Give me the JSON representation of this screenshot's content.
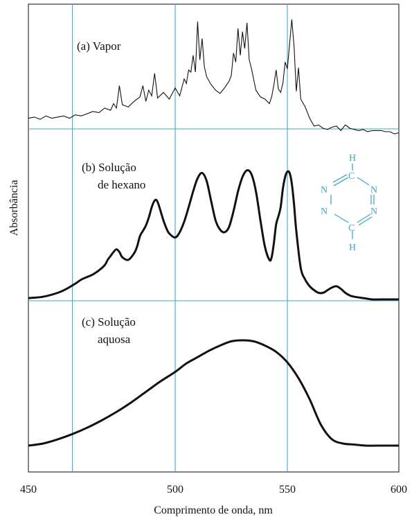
{
  "chart_data": {
    "type": "line",
    "xlabel": "Comprimento de onda, nm",
    "ylabel": "Absorbância",
    "xlim": [
      450,
      600
    ],
    "xticks": [
      "450",
      "500",
      "550",
      "600"
    ],
    "grid_x": [
      465,
      500,
      550
    ],
    "colors": {
      "curve": "#111111",
      "grid": "#39a9dc",
      "frame": "#333333",
      "molecule": "#39a9dc"
    },
    "panels": [
      {
        "id": "vapor",
        "annotation": [
          "(a) Vapor"
        ],
        "ylim": [
          0,
          1
        ],
        "x": [
          450,
          452,
          454,
          456,
          458,
          460,
          462,
          464,
          466,
          468,
          470,
          472,
          474,
          476,
          478,
          479,
          480,
          481,
          482,
          484,
          486,
          488,
          489,
          490,
          491,
          492,
          493,
          494,
          496,
          498,
          500,
          502,
          504,
          505,
          506,
          507,
          508,
          509,
          510,
          511,
          512,
          513,
          514,
          516,
          518,
          520,
          522,
          524,
          525,
          526,
          527,
          528,
          529,
          530,
          531,
          532,
          533,
          534,
          536,
          538,
          540,
          542,
          543,
          544,
          545,
          546,
          547,
          548,
          549,
          550,
          551,
          552,
          553,
          554,
          555,
          556,
          558,
          560,
          562,
          564,
          566,
          568,
          570,
          572,
          574,
          576,
          578,
          580,
          582,
          584,
          586,
          588,
          590,
          592,
          594,
          596,
          598,
          600
        ],
        "y": [
          0.12,
          0.13,
          0.11,
          0.14,
          0.12,
          0.13,
          0.14,
          0.12,
          0.15,
          0.14,
          0.16,
          0.18,
          0.17,
          0.21,
          0.19,
          0.25,
          0.21,
          0.41,
          0.24,
          0.22,
          0.27,
          0.31,
          0.41,
          0.27,
          0.37,
          0.32,
          0.52,
          0.3,
          0.35,
          0.29,
          0.39,
          0.32,
          0.47,
          0.43,
          0.55,
          0.53,
          0.68,
          0.53,
          0.98,
          0.64,
          0.83,
          0.58,
          0.49,
          0.42,
          0.37,
          0.34,
          0.39,
          0.45,
          0.5,
          0.7,
          0.62,
          0.92,
          0.68,
          0.89,
          0.74,
          0.97,
          0.64,
          0.56,
          0.37,
          0.31,
          0.29,
          0.25,
          0.31,
          0.42,
          0.55,
          0.38,
          0.35,
          0.43,
          0.62,
          0.56,
          0.78,
          1.0,
          0.76,
          0.36,
          0.57,
          0.29,
          0.22,
          0.12,
          0.05,
          0.06,
          0.03,
          0.02,
          0.04,
          0.05,
          0.01,
          0.06,
          0.03,
          0.02,
          0.01,
          0.02,
          0.0,
          0.01,
          0.01,
          0.01,
          0.0,
          0.0,
          -0.02,
          -0.01
        ]
      },
      {
        "id": "hexano",
        "annotation": [
          "(b) Solução",
          "de hexano"
        ],
        "ylim": [
          0,
          1
        ],
        "x": [
          450,
          455,
          460,
          463,
          466,
          468,
          470,
          472,
          474,
          476,
          477,
          478,
          479,
          480,
          481,
          482,
          484,
          486,
          487,
          488,
          489,
          490,
          491,
          492,
          493,
          494,
          496,
          497,
          498,
          500,
          502,
          504,
          506,
          508,
          510,
          512,
          514,
          516,
          518,
          520,
          522,
          524,
          526,
          528,
          530,
          532,
          534,
          536,
          538,
          540,
          542,
          543,
          544,
          545,
          546,
          547,
          548,
          549,
          550,
          551,
          552,
          553,
          554,
          556,
          558,
          560,
          562,
          564,
          566,
          568,
          570,
          572,
          574,
          576,
          578,
          580,
          584,
          588,
          592,
          596,
          600
        ],
        "y": [
          0.01,
          0.02,
          0.05,
          0.08,
          0.12,
          0.15,
          0.17,
          0.19,
          0.22,
          0.26,
          0.3,
          0.33,
          0.36,
          0.38,
          0.36,
          0.32,
          0.3,
          0.35,
          0.4,
          0.48,
          0.52,
          0.56,
          0.62,
          0.7,
          0.75,
          0.74,
          0.6,
          0.54,
          0.5,
          0.47,
          0.51,
          0.59,
          0.7,
          0.82,
          0.92,
          0.96,
          0.9,
          0.75,
          0.6,
          0.53,
          0.51,
          0.55,
          0.67,
          0.82,
          0.93,
          0.98,
          0.95,
          0.82,
          0.6,
          0.4,
          0.3,
          0.32,
          0.43,
          0.57,
          0.63,
          0.7,
          0.84,
          0.93,
          0.97,
          0.96,
          0.88,
          0.72,
          0.52,
          0.24,
          0.15,
          0.1,
          0.07,
          0.05,
          0.05,
          0.07,
          0.09,
          0.1,
          0.08,
          0.05,
          0.03,
          0.02,
          0.01,
          0.0,
          0.0,
          0.0,
          0.0
        ]
      },
      {
        "id": "aquosa",
        "annotation": [
          "(c) Solução",
          "aquosa"
        ],
        "ylim": [
          0,
          1
        ],
        "x": [
          450,
          455,
          460,
          465,
          470,
          475,
          480,
          485,
          490,
          495,
          500,
          505,
          510,
          515,
          520,
          525,
          530,
          535,
          540,
          545,
          550,
          555,
          560,
          565,
          570,
          575,
          580,
          585,
          590,
          595,
          600
        ],
        "y": [
          0.0,
          0.02,
          0.06,
          0.11,
          0.17,
          0.24,
          0.32,
          0.41,
          0.51,
          0.61,
          0.7,
          0.78,
          0.84,
          0.9,
          0.95,
          0.99,
          1.0,
          0.99,
          0.95,
          0.89,
          0.79,
          0.64,
          0.44,
          0.2,
          0.06,
          0.02,
          0.01,
          0.0,
          0.0,
          0.0,
          0.0
        ]
      }
    ],
    "molecule_labels": [
      "H",
      "C",
      "N",
      "N",
      "N",
      "N",
      "C",
      "H"
    ]
  }
}
